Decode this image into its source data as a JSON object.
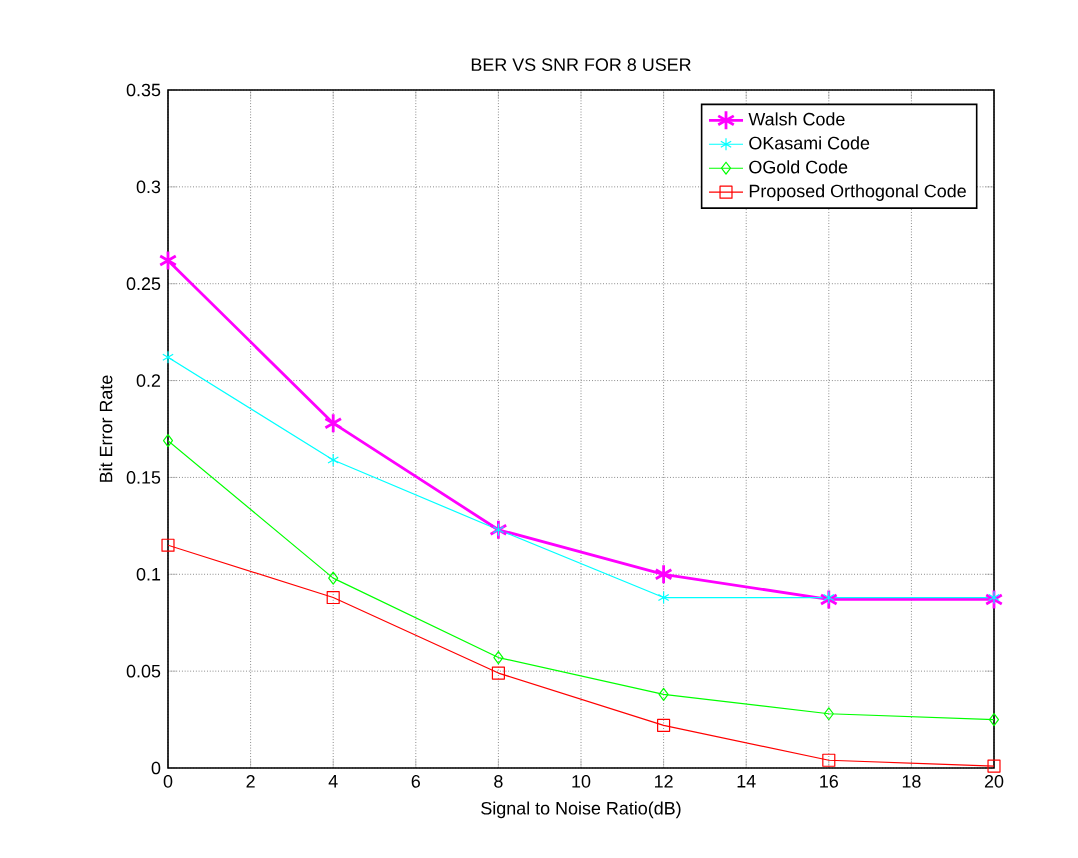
{
  "chart_data": {
    "type": "line",
    "title": "BER VS SNR FOR 8 USER",
    "xlabel": "Signal to Noise Ratio(dB)",
    "ylabel": "Bit Error Rate",
    "x": [
      0,
      4,
      8,
      12,
      16,
      20
    ],
    "series": [
      {
        "name": "Walsh Code",
        "color": "#ff00ff",
        "marker": "cross",
        "values": [
          0.262,
          0.178,
          0.123,
          0.1,
          0.087,
          0.087
        ]
      },
      {
        "name": "OKasami Code",
        "color": "#00ffff",
        "marker": "cross",
        "values": [
          0.212,
          0.159,
          0.123,
          0.088,
          0.088,
          0.088
        ]
      },
      {
        "name": "OGold Code",
        "color": "#00ff00",
        "marker": "diamond",
        "values": [
          0.169,
          0.098,
          0.057,
          0.038,
          0.028,
          0.025
        ]
      },
      {
        "name": "Proposed Orthogonal Code",
        "color": "#ff0000",
        "marker": "square",
        "values": [
          0.115,
          0.088,
          0.049,
          0.022,
          0.004,
          0.001
        ]
      }
    ],
    "xlim": [
      0,
      20
    ],
    "xticks": [
      0,
      2,
      4,
      6,
      8,
      10,
      12,
      14,
      16,
      18,
      20
    ],
    "ylim": [
      0,
      0.35
    ],
    "yticks": [
      0,
      0.05,
      0.1,
      0.15,
      0.2,
      0.25,
      0.3,
      0.35
    ],
    "grid": true,
    "legend": "top right",
    "line_style": "solid"
  }
}
